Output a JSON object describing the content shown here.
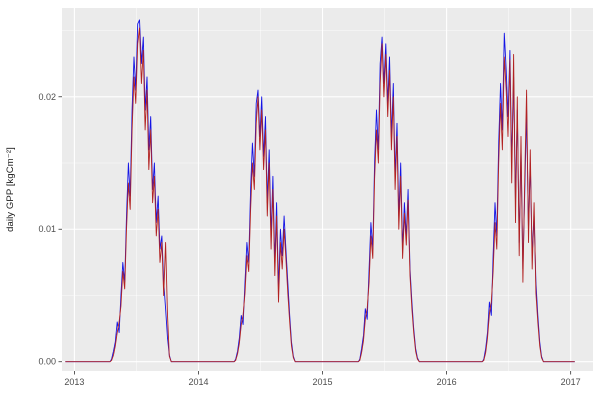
{
  "chart_data": {
    "type": "line",
    "title": "",
    "xlabel": "",
    "ylabel": "daily GPP [kgCm⁻²]",
    "x_domain": [
      2012.9,
      2017.18
    ],
    "y_domain": [
      -0.0007,
      0.0267
    ],
    "x_ticks": [
      {
        "value": 2013,
        "label": "2013"
      },
      {
        "value": 2014,
        "label": "2014"
      },
      {
        "value": 2015,
        "label": "2015"
      },
      {
        "value": 2016,
        "label": "2016"
      },
      {
        "value": 2017,
        "label": "2017"
      }
    ],
    "y_ticks": [
      {
        "value": 0.0,
        "label": "0.00"
      },
      {
        "value": 0.01,
        "label": "0.01"
      },
      {
        "value": 0.02,
        "label": "0.02"
      }
    ],
    "x_minor": [
      2013.5,
      2014.5,
      2015.5,
      2016.5
    ],
    "y_minor": [
      0.005,
      0.015,
      0.025
    ],
    "grid": true,
    "legend": "none",
    "colors": {
      "figure_bg": "#FFFFFF",
      "panel_bg": "#EBEBEB",
      "grid_major": "#FFFFFF",
      "grid_minor": "#FFFFFF",
      "tick_text": "#4D4D4D",
      "axis_tick": "#333333",
      "blue_series": "#1414E6",
      "red_series": "#B22222"
    },
    "data_x_start": 2012.93,
    "data_x_end": 2017.03,
    "series": [
      {
        "name": "blue",
        "color": "#1414E6",
        "segments": [
          {
            "start": 2013.3,
            "dt": 0.015,
            "values": [
              0.0002,
              0.0008,
              0.0015,
              0.003,
              0.0022,
              0.005,
              0.0075,
              0.006,
              0.011,
              0.015,
              0.0125,
              0.019,
              0.023,
              0.0205,
              0.0255,
              0.0258,
              0.0225,
              0.0245,
              0.019,
              0.0215,
              0.016,
              0.0185,
              0.013,
              0.015,
              0.0105,
              0.0125,
              0.0085,
              0.0095,
              0.006,
              0.004,
              0.0018,
              0.0005
            ]
          },
          {
            "start": 2014.3,
            "dt": 0.015,
            "values": [
              0.0002,
              0.0008,
              0.0018,
              0.0035,
              0.0028,
              0.006,
              0.009,
              0.0075,
              0.013,
              0.0165,
              0.014,
              0.0195,
              0.0205,
              0.017,
              0.02,
              0.0155,
              0.0185,
              0.012,
              0.016,
              0.0095,
              0.014,
              0.0075,
              0.012,
              0.0055,
              0.01,
              0.008,
              0.011,
              0.0085,
              0.006,
              0.0035,
              0.0015,
              0.0004
            ]
          },
          {
            "start": 2015.3,
            "dt": 0.015,
            "values": [
              0.0002,
              0.001,
              0.002,
              0.004,
              0.0032,
              0.007,
              0.0105,
              0.0085,
              0.015,
              0.019,
              0.016,
              0.0225,
              0.0245,
              0.021,
              0.024,
              0.0195,
              0.023,
              0.017,
              0.021,
              0.014,
              0.018,
              0.011,
              0.015,
              0.0085,
              0.012,
              0.0095,
              0.013,
              0.007,
              0.0045,
              0.0025,
              0.001,
              0.0003
            ]
          },
          {
            "start": 2016.3,
            "dt": 0.015,
            "values": [
              0.0002,
              0.001,
              0.0022,
              0.0045,
              0.0035,
              0.008,
              0.012,
              0.0095,
              0.0165,
              0.021,
              0.0175,
              0.0248,
              0.022,
              0.0185,
              0.0235,
              0.015,
              0.0215,
              0.012,
              0.019,
              0.009,
              0.016,
              0.007,
              0.013,
              0.019,
              0.01,
              0.015,
              0.008,
              0.011,
              0.006,
              0.0035,
              0.0015,
              0.0004
            ]
          }
        ]
      },
      {
        "name": "red",
        "color": "#B22222",
        "segments": [
          {
            "start": 2013.3,
            "dt": 0.015,
            "values": [
              0.0001,
              0.0005,
              0.0012,
              0.0022,
              0.003,
              0.0042,
              0.0068,
              0.0055,
              0.01,
              0.0135,
              0.0115,
              0.0175,
              0.0215,
              0.0195,
              0.024,
              0.0252,
              0.021,
              0.0235,
              0.0175,
              0.0205,
              0.0145,
              0.0175,
              0.012,
              0.014,
              0.0095,
              0.0115,
              0.0075,
              0.009,
              0.005,
              0.009,
              0.0035,
              0.0004
            ]
          },
          {
            "start": 2014.3,
            "dt": 0.015,
            "values": [
              0.0001,
              0.0006,
              0.0014,
              0.0028,
              0.0035,
              0.0052,
              0.008,
              0.0068,
              0.0115,
              0.015,
              0.013,
              0.018,
              0.02,
              0.016,
              0.019,
              0.0145,
              0.0175,
              0.011,
              0.015,
              0.0085,
              0.013,
              0.0065,
              0.011,
              0.0045,
              0.009,
              0.007,
              0.01,
              0.0078,
              0.0052,
              0.003,
              0.0012,
              0.0003
            ]
          },
          {
            "start": 2015.3,
            "dt": 0.015,
            "values": [
              0.0001,
              0.0007,
              0.0016,
              0.0032,
              0.004,
              0.006,
              0.0095,
              0.0078,
              0.0138,
              0.0175,
              0.015,
              0.021,
              0.024,
              0.02,
              0.0232,
              0.0185,
              0.022,
              0.016,
              0.02,
              0.013,
              0.017,
              0.01,
              0.014,
              0.0078,
              0.0112,
              0.0088,
              0.0122,
              0.0065,
              0.004,
              0.0022,
              0.0008,
              0.0002
            ]
          },
          {
            "start": 2016.3,
            "dt": 0.015,
            "values": [
              0.0001,
              0.0007,
              0.0018,
              0.0036,
              0.0045,
              0.0068,
              0.0105,
              0.0085,
              0.015,
              0.0195,
              0.016,
              0.023,
              0.0205,
              0.017,
              0.0228,
              0.0135,
              0.0232,
              0.0105,
              0.02,
              0.008,
              0.017,
              0.006,
              0.014,
              0.0205,
              0.009,
              0.016,
              0.007,
              0.012,
              0.0052,
              0.003,
              0.0012,
              0.0003
            ]
          }
        ]
      }
    ]
  }
}
